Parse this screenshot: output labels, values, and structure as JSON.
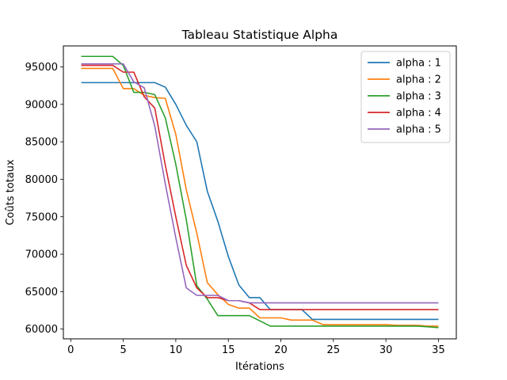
{
  "chart_data": {
    "type": "line",
    "title": "Tableau Statistique Alpha",
    "xlabel": "Itérations",
    "ylabel": "Coûts totaux",
    "xlim": [
      -0.7,
      36.7
    ],
    "ylim": [
      58700,
      97800
    ],
    "xticks": [
      0,
      5,
      10,
      15,
      20,
      25,
      30,
      35
    ],
    "yticks": [
      60000,
      65000,
      70000,
      75000,
      80000,
      85000,
      90000,
      95000
    ],
    "grid": false,
    "legend_position": "top-right",
    "x": [
      1,
      2,
      3,
      4,
      5,
      6,
      7,
      8,
      9,
      10,
      11,
      12,
      13,
      14,
      15,
      16,
      17,
      18,
      19,
      20,
      21,
      22,
      23,
      24,
      25,
      26,
      27,
      28,
      29,
      30,
      31,
      32,
      33,
      34,
      35
    ],
    "series": [
      {
        "name": "alpha : 1",
        "color": "#1f77b4",
        "values": [
          92900,
          92900,
          92900,
          92900,
          92900,
          92900,
          92900,
          92900,
          92300,
          90000,
          87200,
          85000,
          78400,
          74400,
          69700,
          65900,
          64200,
          64200,
          62600,
          62600,
          62600,
          62600,
          61300,
          61300,
          61300,
          61300,
          61300,
          61300,
          61300,
          61300,
          61300,
          61300,
          61300,
          61300,
          61300
        ]
      },
      {
        "name": "alpha : 2",
        "color": "#ff7f0e",
        "values": [
          94800,
          94800,
          94800,
          94800,
          92100,
          92100,
          91200,
          90900,
          90800,
          86000,
          78600,
          72800,
          66200,
          64600,
          63300,
          62800,
          62800,
          61500,
          61500,
          61500,
          61200,
          61200,
          61200,
          60600,
          60600,
          60600,
          60600,
          60600,
          60600,
          60600,
          60500,
          60500,
          60500,
          60400,
          60400
        ]
      },
      {
        "name": "alpha : 3",
        "color": "#2ca02c",
        "values": [
          96400,
          96400,
          96400,
          96400,
          95200,
          91600,
          91600,
          91300,
          88200,
          82000,
          74600,
          65800,
          64000,
          61800,
          61800,
          61800,
          61800,
          61100,
          60400,
          60400,
          60400,
          60400,
          60400,
          60400,
          60400,
          60400,
          60400,
          60400,
          60400,
          60400,
          60400,
          60400,
          60400,
          60300,
          60200
        ]
      },
      {
        "name": "alpha : 4",
        "color": "#d62728",
        "values": [
          95200,
          95200,
          95200,
          95200,
          94300,
          94300,
          91000,
          89500,
          81900,
          75000,
          68500,
          65500,
          64200,
          64200,
          63800,
          63800,
          63500,
          62600,
          62600,
          62600,
          62600,
          62600,
          62600,
          62600,
          62600,
          62600,
          62600,
          62600,
          62600,
          62600,
          62600,
          62600,
          62600,
          62600,
          62600
        ]
      },
      {
        "name": "alpha : 5",
        "color": "#9467bd",
        "values": [
          95400,
          95400,
          95400,
          95400,
          95400,
          93000,
          92200,
          87100,
          79400,
          72200,
          65500,
          64500,
          64500,
          64500,
          63800,
          63800,
          63500,
          63500,
          63500,
          63500,
          63500,
          63500,
          63500,
          63500,
          63500,
          63500,
          63500,
          63500,
          63500,
          63500,
          63500,
          63500,
          63500,
          63500,
          63500
        ]
      }
    ]
  }
}
